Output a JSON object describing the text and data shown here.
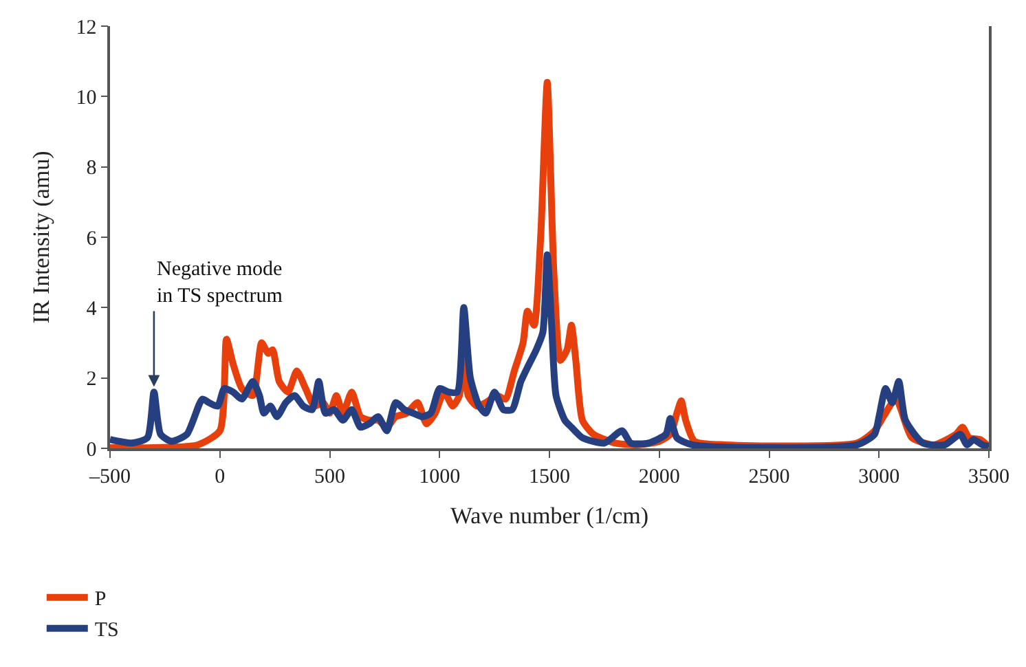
{
  "chart_data": {
    "type": "line",
    "xlabel": "Wave number (1/cm)",
    "ylabel": "IR Intensity (amu)",
    "xlim": [
      -500,
      3500
    ],
    "xticks": [
      {
        "value": -500,
        "label": "–500"
      },
      0,
      500,
      1000,
      1500,
      2000,
      2500,
      3000,
      3500
    ],
    "ylim": [
      0,
      12
    ],
    "yticks": [
      0,
      2,
      4,
      6,
      8,
      10,
      12
    ],
    "legend": "bottom",
    "marker": "none",
    "line_style": "solid",
    "annotations": [
      {
        "text": "Negative mode\nin TS spectrum",
        "x": -300,
        "y": 1.75
      }
    ],
    "series": [
      {
        "name": "P",
        "color": "#e8400c",
        "x": [
          -500,
          -300,
          -100,
          0,
          30,
          60,
          100,
          150,
          190,
          220,
          240,
          270,
          310,
          350,
          390,
          430,
          470,
          500,
          530,
          560,
          600,
          640,
          680,
          720,
          760,
          800,
          850,
          900,
          940,
          980,
          1020,
          1060,
          1090,
          1110,
          1130,
          1170,
          1210,
          1260,
          1300,
          1340,
          1380,
          1400,
          1430,
          1460,
          1490,
          1520,
          1550,
          1580,
          1600,
          1620,
          1650,
          1700,
          1800,
          1900,
          2000,
          2050,
          2080,
          2100,
          2120,
          2160,
          2300,
          2900,
          2980,
          3020,
          3060,
          3080,
          3100,
          3150,
          3250,
          3350,
          3380,
          3410,
          3460,
          3500
        ],
        "values": [
          0.02,
          0.02,
          0.1,
          0.5,
          3.1,
          2.4,
          1.7,
          1.5,
          3.0,
          2.7,
          2.8,
          1.9,
          1.6,
          2.2,
          1.7,
          1.2,
          1.3,
          1.0,
          1.5,
          1.0,
          1.6,
          0.9,
          0.8,
          0.8,
          0.6,
          0.9,
          1.0,
          1.3,
          0.7,
          1.0,
          1.6,
          1.2,
          1.5,
          2.6,
          1.5,
          1.2,
          1.3,
          1.5,
          1.4,
          2.2,
          3.0,
          3.9,
          3.5,
          6.0,
          10.4,
          5.0,
          2.5,
          2.8,
          3.5,
          2.5,
          0.8,
          0.4,
          0.15,
          0.1,
          0.2,
          0.4,
          1.0,
          1.35,
          0.8,
          0.2,
          0.1,
          0.15,
          0.5,
          0.9,
          1.3,
          1.4,
          1.1,
          0.3,
          0.1,
          0.4,
          0.6,
          0.3,
          0.25,
          0.05
        ]
      },
      {
        "name": "TS",
        "color": "#253f80",
        "x": [
          -500,
          -400,
          -330,
          -300,
          -270,
          -220,
          -150,
          -80,
          -50,
          -10,
          20,
          60,
          100,
          150,
          180,
          200,
          230,
          260,
          300,
          340,
          380,
          420,
          450,
          480,
          520,
          560,
          600,
          640,
          680,
          720,
          760,
          800,
          840,
          880,
          920,
          960,
          1000,
          1040,
          1080,
          1110,
          1140,
          1180,
          1210,
          1250,
          1290,
          1330,
          1370,
          1400,
          1440,
          1470,
          1490,
          1510,
          1530,
          1570,
          1600,
          1650,
          1750,
          1830,
          1870,
          1950,
          2030,
          2050,
          2080,
          2150,
          2900,
          2980,
          3000,
          3030,
          3060,
          3090,
          3120,
          3200,
          3300,
          3370,
          3400,
          3430,
          3470,
          3500
        ],
        "values": [
          0.25,
          0.15,
          0.3,
          1.6,
          0.4,
          0.2,
          0.4,
          1.4,
          1.3,
          1.2,
          1.7,
          1.6,
          1.4,
          1.9,
          1.5,
          1.0,
          1.2,
          0.9,
          1.3,
          1.5,
          1.2,
          1.1,
          1.9,
          1.0,
          1.1,
          0.8,
          1.1,
          0.6,
          0.7,
          0.9,
          0.5,
          1.3,
          1.1,
          1.0,
          0.9,
          1.0,
          1.7,
          1.6,
          1.6,
          4.0,
          2.0,
          1.2,
          1.0,
          1.6,
          1.1,
          1.1,
          1.9,
          2.3,
          2.8,
          3.3,
          5.5,
          3.5,
          1.5,
          0.8,
          0.6,
          0.3,
          0.15,
          0.5,
          0.15,
          0.15,
          0.4,
          0.85,
          0.3,
          0.1,
          0.1,
          0.4,
          0.9,
          1.7,
          1.3,
          1.9,
          0.8,
          0.15,
          0.1,
          0.4,
          0.1,
          0.25,
          0.1,
          0.05
        ]
      }
    ]
  }
}
